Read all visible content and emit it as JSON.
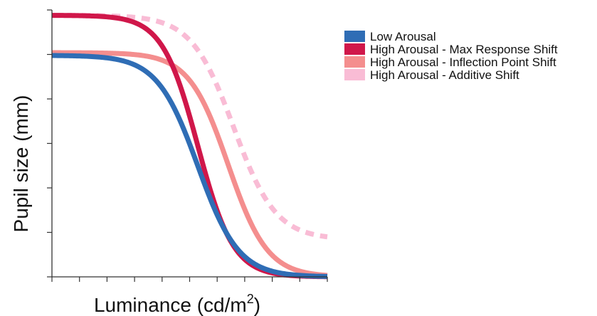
{
  "chart_data": {
    "type": "line",
    "title": "",
    "xlabel": "Luminance (cd/m²)",
    "xlabel_base": "Luminance (cd/m",
    "xlabel_sup": "2",
    "xlabel_tail": ")",
    "ylabel": "Pupil size (mm)",
    "xlim": [
      0,
      1
    ],
    "ylim": [
      0,
      1
    ],
    "x_tick_count": 11,
    "y_tick_count": 7,
    "grid": false,
    "legend_position": "top-right",
    "series": [
      {
        "name": "Low Arousal",
        "color": "#2F6DB5",
        "dash": "solid",
        "function": {
          "upper": 0.83,
          "lower": 0.0,
          "midpoint": 0.53,
          "slope": 13.5
        }
      },
      {
        "name": "High Arousal - Max Response Shift",
        "color": "#D0174A",
        "dash": "solid",
        "function": {
          "upper": 0.98,
          "lower": 0.0,
          "midpoint": 0.53,
          "slope": 15.5
        }
      },
      {
        "name": "High Arousal - Inflection Point Shift",
        "color": "#F48E8E",
        "dash": "solid",
        "function": {
          "upper": 0.84,
          "lower": 0.0,
          "midpoint": 0.64,
          "slope": 14.0
        }
      },
      {
        "name": "High Arousal - Additive Shift",
        "color": "#F9BCD5",
        "dash": "dashed",
        "function": {
          "upper": 0.98,
          "lower": 0.14,
          "midpoint": 0.66,
          "slope": 13.0
        }
      }
    ]
  }
}
